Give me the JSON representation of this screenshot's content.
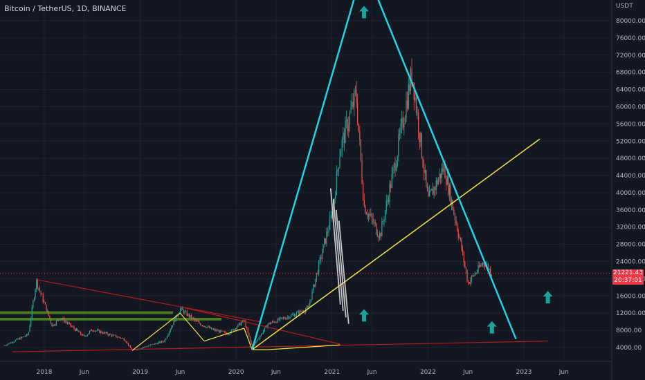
{
  "header": {
    "title": "Bitcoin / TetherUS, 1D, BINANCE"
  },
  "price_axis": {
    "unit_label": "USDT"
  },
  "last_price": {
    "value": "21221.43",
    "countdown": "20:37:01",
    "color": "#f23645"
  },
  "colors": {
    "background": "#131722",
    "cyan_line": "#22d3e6",
    "yellow_line": "#f5e342",
    "red_line": "#b71c1c",
    "green_band": "#4a7a1f",
    "arrow": "#1aa39a",
    "candle_up": "#26a69a",
    "candle_down": "#ef5350"
  },
  "chart_data": {
    "type": "candlestick",
    "title": "Bitcoin / TetherUS, 1D, BINANCE",
    "y_unit": "USDT",
    "y_ticks": [
      "4000.00",
      "8000.00",
      "12000.00",
      "16000.00",
      "20000.00",
      "24000.00",
      "28000.00",
      "32000.00",
      "36000.00",
      "40000.00",
      "44000.00",
      "48000.00",
      "52000.00",
      "56000.00",
      "60000.00",
      "64000.00",
      "68000.00",
      "72000.00",
      "76000.00",
      "80000.00"
    ],
    "x_ticks": [
      "2018",
      "Jun",
      "2019",
      "Jun",
      "2020",
      "Jun",
      "2021",
      "Jun",
      "2022",
      "Jun",
      "2023",
      "Jun"
    ],
    "price_path": [
      {
        "date": "2017-08",
        "price": 4500
      },
      {
        "date": "2017-11",
        "price": 7000
      },
      {
        "date": "2017-12",
        "price": 19500
      },
      {
        "date": "2018-02",
        "price": 9000
      },
      {
        "date": "2018-03",
        "price": 11000
      },
      {
        "date": "2018-06",
        "price": 6500
      },
      {
        "date": "2018-07",
        "price": 8200
      },
      {
        "date": "2018-11",
        "price": 6000
      },
      {
        "date": "2018-12",
        "price": 3300
      },
      {
        "date": "2019-04",
        "price": 5500
      },
      {
        "date": "2019-06",
        "price": 13000
      },
      {
        "date": "2019-08",
        "price": 10000
      },
      {
        "date": "2019-10",
        "price": 8200
      },
      {
        "date": "2019-12",
        "price": 7200
      },
      {
        "date": "2020-02",
        "price": 10300
      },
      {
        "date": "2020-03",
        "price": 4000
      },
      {
        "date": "2020-05",
        "price": 9500
      },
      {
        "date": "2020-08",
        "price": 11500
      },
      {
        "date": "2020-10",
        "price": 13000
      },
      {
        "date": "2020-12",
        "price": 28000
      },
      {
        "date": "2021-01",
        "price": 35000
      },
      {
        "date": "2021-02",
        "price": 50000
      },
      {
        "date": "2021-04",
        "price": 63000
      },
      {
        "date": "2021-05",
        "price": 37000
      },
      {
        "date": "2021-07",
        "price": 30000
      },
      {
        "date": "2021-09",
        "price": 48000
      },
      {
        "date": "2021-11",
        "price": 68000
      },
      {
        "date": "2022-01",
        "price": 38000
      },
      {
        "date": "2022-03",
        "price": 46000
      },
      {
        "date": "2022-05",
        "price": 29000
      },
      {
        "date": "2022-06",
        "price": 19000
      },
      {
        "date": "2022-08",
        "price": 24000
      },
      {
        "date": "2022-09",
        "price": 21221
      }
    ],
    "drawings": {
      "cyan_triangle": [
        {
          "date": "2020-03",
          "price": 3500
        },
        {
          "date": "2021-05",
          "price": 93000
        },
        {
          "date": "2022-12",
          "price": 6000
        }
      ],
      "yellow_trend": [
        {
          "date": "2020-03",
          "price": 3500
        },
        {
          "date": "2023-03",
          "price": 52500
        }
      ],
      "red_support": [
        {
          "date": "2017-09",
          "price": 3000
        },
        {
          "date": "2023-04",
          "price": 5500
        }
      ],
      "red_resistance_1": [
        {
          "date": "2017-12",
          "price": 19800
        },
        {
          "date": "2020-04",
          "price": 10000
        }
      ],
      "red_resistance_2": [
        {
          "date": "2019-06",
          "price": 13500
        },
        {
          "date": "2021-02",
          "price": 4800
        }
      ],
      "up_arrows": [
        {
          "date": "2021-05",
          "price": 82000
        },
        {
          "date": "2021-05",
          "price": 11500
        },
        {
          "date": "2022-09",
          "price": 8700
        },
        {
          "date": "2023-04",
          "price": 15700
        }
      ]
    }
  }
}
